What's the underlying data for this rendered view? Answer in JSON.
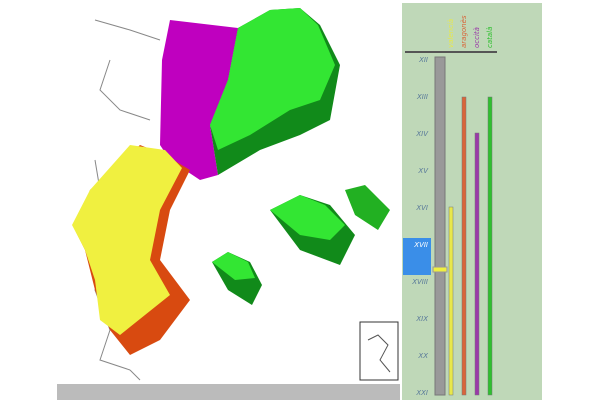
{
  "timeline": {
    "labels": [
      "XII",
      "XIII",
      "XIV",
      "XV",
      "XVI",
      "XVII",
      "XVIII",
      "XIX",
      "XX",
      "XXI"
    ],
    "selected": 5
  },
  "legend": [
    {
      "name": "valencià",
      "color": "#e8e84a"
    },
    {
      "name": "aragonès",
      "color": "#d9653a"
    },
    {
      "name": "occità",
      "color": "#9a3aa8"
    },
    {
      "name": "català",
      "color": "#2fbf2f"
    }
  ]
}
